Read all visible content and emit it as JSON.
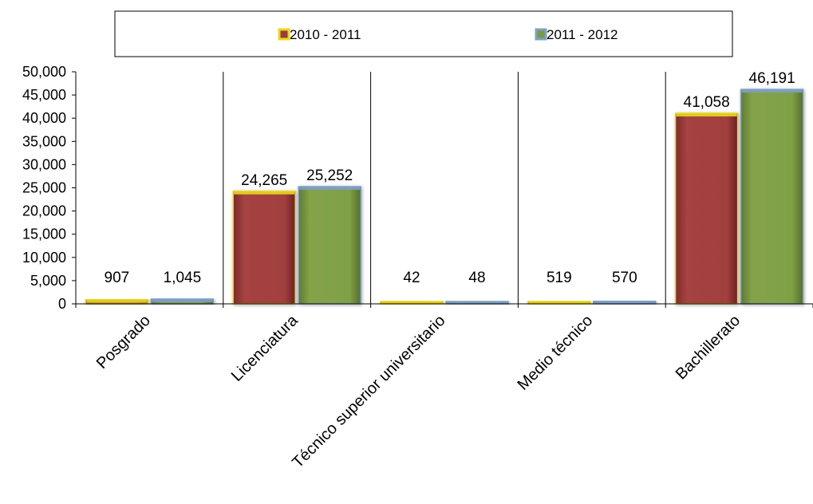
{
  "chart_data": {
    "type": "bar",
    "categories": [
      "Posgrado",
      "Licenciatura",
      "Técnico superior universitario",
      "Medio técnico",
      "Bachillerato"
    ],
    "series": [
      {
        "name": "2010 - 2011",
        "values": [
          907,
          24265,
          42,
          519,
          41058
        ],
        "labels": [
          "907",
          "24,265",
          "42",
          "519",
          "41,058"
        ]
      },
      {
        "name": "2011 - 2012",
        "values": [
          1045,
          25252,
          48,
          570,
          46191
        ],
        "labels": [
          "1,045",
          "25,252",
          "48",
          "570",
          "46,191"
        ]
      }
    ],
    "ylim": [
      0,
      50000
    ],
    "yticks": [
      0,
      5000,
      10000,
      15000,
      20000,
      25000,
      30000,
      35000,
      40000,
      45000,
      50000
    ],
    "ytick_labels": [
      "0",
      "5,000",
      "10,000",
      "15,000",
      "20,000",
      "25,000",
      "30,000",
      "35,000",
      "40,000",
      "45,000",
      "50,000"
    ],
    "legend_position": "top",
    "grid": "vertical category separators",
    "colors": {
      "series_fill": [
        "#9b3a3a",
        "#7a9a42"
      ],
      "series_edge": [
        "#e8d81c",
        "#7f9fc6"
      ],
      "axis": "#000000"
    }
  }
}
